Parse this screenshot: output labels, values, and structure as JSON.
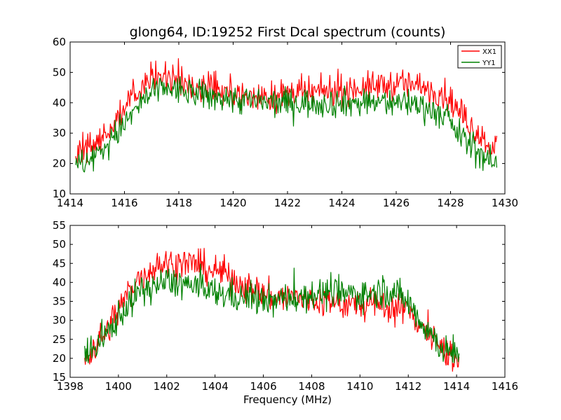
{
  "figure": {
    "title": "glong64, ID:19252 First Dcal spectrum (counts)",
    "xlabel": "Frequency (MHz)"
  },
  "legend": {
    "items": [
      {
        "label": "XX1",
        "color": "#ff0000"
      },
      {
        "label": "YY1",
        "color": "#008000"
      }
    ],
    "placement": "top-right of upper panel"
  },
  "chart_data": [
    {
      "type": "line",
      "panel": "top",
      "title": "glong64, ID:19252 First Dcal spectrum (counts)",
      "xlabel": "",
      "ylabel": "",
      "xlim": [
        1414,
        1430
      ],
      "ylim": [
        10,
        60
      ],
      "xticks": [
        1414,
        1416,
        1418,
        1420,
        1422,
        1424,
        1426,
        1428,
        1430
      ],
      "yticks": [
        10,
        20,
        30,
        40,
        50,
        60
      ],
      "noise": 3.5,
      "series": [
        {
          "name": "XX1",
          "color": "#ff0000",
          "x": [
            1414.2,
            1414.6,
            1415.0,
            1415.4,
            1415.8,
            1416.2,
            1416.6,
            1417.0,
            1417.5,
            1418.0,
            1418.5,
            1419.0,
            1419.5,
            1420.0,
            1420.5,
            1421.0,
            1421.5,
            1422.0,
            1422.5,
            1423.0,
            1423.5,
            1424.0,
            1424.5,
            1425.0,
            1425.5,
            1426.0,
            1426.5,
            1427.0,
            1427.5,
            1428.0,
            1428.3,
            1428.6,
            1429.0,
            1429.4,
            1429.7
          ],
          "y": [
            23,
            25,
            27,
            31,
            35,
            40,
            45,
            48,
            48,
            47,
            46,
            45,
            44,
            43,
            42,
            42,
            42,
            43,
            43,
            43,
            44,
            44,
            45,
            45,
            46,
            46,
            46,
            45,
            44,
            41,
            37,
            34,
            30,
            27,
            25
          ]
        },
        {
          "name": "YY1",
          "color": "#008000",
          "x": [
            1414.2,
            1414.6,
            1415.0,
            1415.4,
            1415.8,
            1416.2,
            1416.6,
            1417.0,
            1417.5,
            1418.0,
            1418.5,
            1419.0,
            1419.5,
            1420.0,
            1420.5,
            1421.0,
            1421.5,
            1422.0,
            1422.5,
            1423.0,
            1423.5,
            1424.0,
            1424.5,
            1425.0,
            1425.5,
            1426.0,
            1426.5,
            1427.0,
            1427.5,
            1428.0,
            1428.3,
            1428.6,
            1429.0,
            1429.4,
            1429.7
          ],
          "y": [
            19,
            21,
            23,
            27,
            31,
            35,
            40,
            43,
            45,
            44,
            43,
            42,
            42,
            41,
            41,
            40,
            40,
            40,
            40,
            40,
            40,
            40,
            40,
            40,
            40,
            40,
            40,
            39,
            37,
            33,
            30,
            27,
            24,
            21,
            19
          ]
        }
      ]
    },
    {
      "type": "line",
      "panel": "bottom",
      "title": "",
      "xlabel": "Frequency (MHz)",
      "ylabel": "",
      "xlim": [
        1398,
        1416
      ],
      "ylim": [
        15,
        55
      ],
      "xticks": [
        1398,
        1400,
        1402,
        1404,
        1406,
        1408,
        1410,
        1412,
        1414,
        1416
      ],
      "yticks": [
        15,
        20,
        25,
        30,
        35,
        40,
        45,
        50,
        55
      ],
      "noise": 3.0,
      "series": [
        {
          "name": "XX1",
          "color": "#ff0000",
          "x": [
            1398.6,
            1399.0,
            1399.5,
            1400.0,
            1400.5,
            1401.0,
            1401.5,
            1402.0,
            1402.5,
            1403.0,
            1403.5,
            1404.0,
            1404.5,
            1405.0,
            1405.5,
            1406.0,
            1406.5,
            1407.0,
            1407.5,
            1408.0,
            1408.5,
            1409.0,
            1409.5,
            1410.0,
            1410.5,
            1411.0,
            1411.5,
            1412.0,
            1412.5,
            1413.0,
            1413.5,
            1414.1
          ],
          "y": [
            20,
            23,
            27,
            33,
            38,
            42,
            44,
            45,
            45,
            45,
            44,
            43,
            42,
            40,
            38,
            37,
            36,
            36,
            36,
            35,
            35,
            35,
            34,
            34,
            34,
            34,
            33,
            33,
            29,
            25,
            22,
            20
          ]
        },
        {
          "name": "YY1",
          "color": "#008000",
          "x": [
            1398.6,
            1399.0,
            1399.5,
            1400.0,
            1400.5,
            1401.0,
            1401.5,
            1402.0,
            1402.5,
            1403.0,
            1403.5,
            1404.0,
            1404.5,
            1405.0,
            1405.5,
            1406.0,
            1406.5,
            1407.0,
            1407.5,
            1408.0,
            1408.5,
            1409.0,
            1409.5,
            1410.0,
            1410.5,
            1411.0,
            1411.5,
            1412.0,
            1412.5,
            1413.0,
            1413.5,
            1414.1
          ],
          "y": [
            20,
            22,
            26,
            31,
            35,
            38,
            39,
            40,
            40,
            39,
            38,
            37,
            37,
            36,
            36,
            35,
            35,
            36,
            36,
            37,
            37,
            37,
            37,
            37,
            37,
            38,
            37,
            35,
            30,
            26,
            22,
            20
          ]
        }
      ]
    }
  ]
}
